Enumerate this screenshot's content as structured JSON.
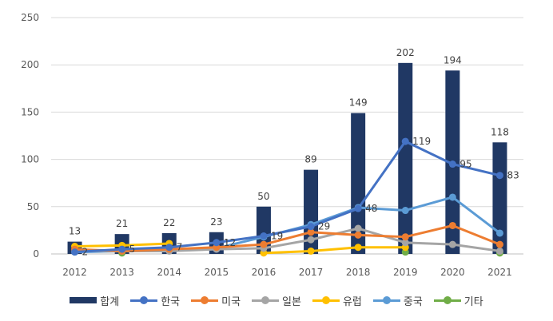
{
  "chart_data": {
    "type": "bar",
    "title": "",
    "xlabel": "",
    "ylabel": "",
    "ylim": [
      0,
      250
    ],
    "yticks": [
      "0",
      "50",
      "100",
      "150",
      "200",
      "250"
    ],
    "categories": [
      "2012",
      "2013",
      "2014",
      "2015",
      "2016",
      "2017",
      "2018",
      "2019",
      "2020",
      "2021"
    ],
    "grid": true,
    "legend_position": "bottom",
    "series": [
      {
        "name": "합계",
        "kind": "bar",
        "color": "#203864",
        "values": [
          13,
          21,
          22,
          23,
          50,
          89,
          149,
          202,
          194,
          118
        ],
        "labels": [
          "13",
          "21",
          "22",
          "23",
          "50",
          "89",
          "149",
          "202",
          "194",
          "118"
        ]
      },
      {
        "name": "한국",
        "kind": "line",
        "color": "#4472C4",
        "values": [
          2,
          5,
          7,
          12,
          19,
          29,
          48,
          119,
          95,
          83
        ],
        "labels": [
          "2",
          "5",
          "7",
          "12",
          "19",
          "29",
          "48",
          "119",
          "95",
          "83"
        ]
      },
      {
        "name": "미국",
        "kind": "line",
        "color": "#ED7D31",
        "values": [
          5,
          3,
          5,
          7,
          10,
          23,
          20,
          18,
          30,
          10
        ]
      },
      {
        "name": "일본",
        "kind": "line",
        "color": "#A5A5A5",
        "values": [
          3,
          3,
          3,
          5,
          6,
          15,
          27,
          12,
          10,
          3
        ]
      },
      {
        "name": "유럽",
        "kind": "line",
        "color": "#FFC000",
        "values": [
          8,
          9,
          11,
          null,
          1,
          3,
          7,
          7,
          null,
          null
        ]
      },
      {
        "name": "중국",
        "kind": "line",
        "color": "#5B9BD5",
        "values": [
          2,
          3,
          4,
          6,
          18,
          31,
          49,
          46,
          60,
          22
        ]
      },
      {
        "name": "기타",
        "kind": "line",
        "color": "#70AD47",
        "values": [
          null,
          1,
          null,
          null,
          null,
          null,
          null,
          2,
          null,
          1
        ]
      }
    ]
  }
}
